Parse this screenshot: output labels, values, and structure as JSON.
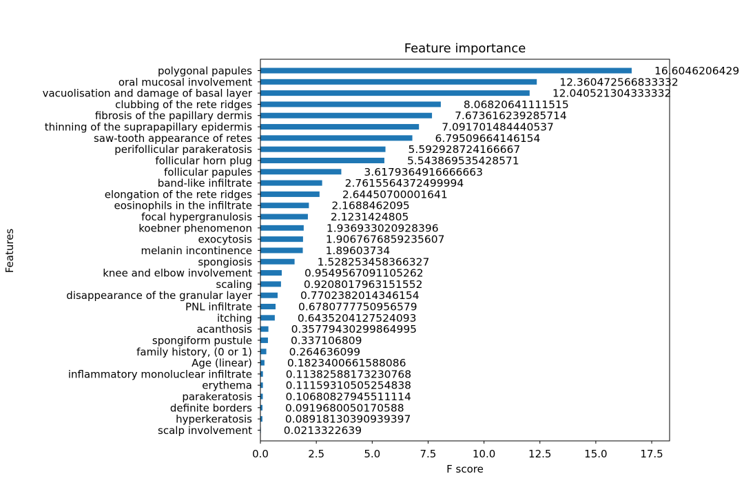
{
  "chart_data": {
    "type": "bar",
    "orientation": "horizontal",
    "title": "Feature importance",
    "xlabel": "F score",
    "ylabel": "Features",
    "xlim": [
      0,
      18.3
    ],
    "xticks": [
      0.0,
      2.5,
      5.0,
      7.5,
      10.0,
      12.5,
      15.0,
      17.5
    ],
    "xtick_labels": [
      "0.0",
      "2.5",
      "5.0",
      "7.5",
      "10.0",
      "12.5",
      "15.0",
      "17.5"
    ],
    "grid": false,
    "bar_color": "#1f77b4",
    "categories": [
      "polygonal papules",
      "oral mucosal involvement",
      "vacuolisation and damage of basal layer",
      "clubbing of the rete ridges",
      "fibrosis of the papillary dermis",
      "thinning of the suprapapillary epidermis",
      "saw-tooth appearance of retes",
      "perifollicular parakeratosis",
      "follicular horn plug",
      "follicular papules",
      "band-like infiltrate",
      "elongation of the rete ridges",
      "eosinophils in the infiltrate",
      "focal hypergranulosis",
      "koebner phenomenon",
      "exocytosis",
      "melanin incontinence",
      "spongiosis",
      "knee and elbow involvement",
      "scaling",
      "disappearance of the granular layer",
      "PNL infiltrate",
      "itching",
      "acanthosis",
      "spongiform pustule",
      "family history, (0 or 1)",
      "Age (linear)",
      "inflammatory monoluclear infiltrate",
      "erythema",
      "parakeratosis",
      "definite borders",
      "hyperkeratosis",
      "scalp involvement"
    ],
    "values": [
      16.6046206429,
      12.360472566833332,
      12.040521304333332,
      8.06820641111515,
      7.673616239285714,
      7.091701484440537,
      6.79509664146154,
      5.592928724166667,
      5.543869535428571,
      3.6179364916666663,
      2.7615564372499994,
      2.64450700001641,
      2.1688462095,
      2.1231424805,
      1.936933020928396,
      1.9067676859235607,
      1.89603734,
      1.528253458366327,
      0.9549567091105262,
      0.9208017963151552,
      0.7702382014346154,
      0.6780777750956579,
      0.6435204127524093,
      0.35779430299864995,
      0.337106809,
      0.264636099,
      0.1823400661588086,
      0.11382588173230768,
      0.11159310505254838,
      0.10680827945511114,
      0.0919680050170588,
      0.08918130390939397,
      0.0213322639
    ],
    "value_labels": [
      "16.6046206429",
      "12.360472566833332",
      "12.040521304333332",
      "8.06820641111515",
      "7.673616239285714",
      "7.091701484440537",
      "6.79509664146154",
      "5.592928724166667",
      "5.543869535428571",
      "3.6179364916666663",
      "2.7615564372499994",
      "2.64450700001641",
      "2.1688462095",
      "2.1231424805",
      "1.936933020928396",
      "1.9067676859235607",
      "1.89603734",
      "1.528253458366327",
      "0.9549567091105262",
      "0.9208017963151552",
      "0.7702382014346154",
      "0.6780777750956579",
      "0.6435204127524093",
      "0.35779430299864995",
      "0.337106809",
      "0.264636099",
      "0.1823400661588086",
      "0.11382588173230768",
      "0.11159310505254838",
      "0.10680827945511114",
      "0.0919680050170588",
      "0.08918130390939397",
      "0.0213322639"
    ]
  }
}
